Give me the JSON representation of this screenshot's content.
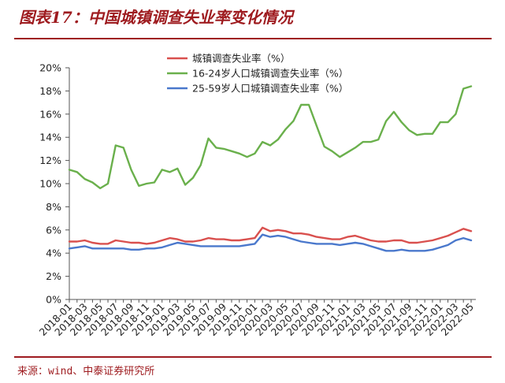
{
  "figure": {
    "title": "图表17：中国城镇调查失业率变化情况",
    "source": "来源：wind、中泰证券研究所"
  },
  "chart_data": {
    "type": "line",
    "title": "",
    "xlabel": "",
    "ylabel": "",
    "ylim": [
      0,
      20
    ],
    "yticks": [
      "0%",
      "2%",
      "4%",
      "6%",
      "8%",
      "10%",
      "12%",
      "14%",
      "16%",
      "18%",
      "20%"
    ],
    "grid": false,
    "legend_position": "top-left",
    "x": [
      "2018-01",
      "2018-02",
      "2018-03",
      "2018-04",
      "2018-05",
      "2018-06",
      "2018-07",
      "2018-08",
      "2018-09",
      "2018-10",
      "2018-11",
      "2018-12",
      "2019-01",
      "2019-02",
      "2019-03",
      "2019-04",
      "2019-05",
      "2019-06",
      "2019-07",
      "2019-08",
      "2019-09",
      "2019-10",
      "2019-11",
      "2019-12",
      "2020-01",
      "2020-02",
      "2020-03",
      "2020-04",
      "2020-05",
      "2020-06",
      "2020-07",
      "2020-08",
      "2020-09",
      "2020-10",
      "2020-11",
      "2020-12",
      "2021-01",
      "2021-02",
      "2021-03",
      "2021-04",
      "2021-05",
      "2021-06",
      "2021-07",
      "2021-08",
      "2021-09",
      "2021-10",
      "2021-11",
      "2021-12",
      "2022-01",
      "2022-02",
      "2022-03",
      "2022-04",
      "2022-05"
    ],
    "xtick_labels": [
      "2018-01",
      "2018-03",
      "2018-05",
      "2018-07",
      "2018-09",
      "2018-11",
      "2019-01",
      "2019-03",
      "2019-05",
      "2019-07",
      "2019-09",
      "2019-11",
      "2020-01",
      "2020-03",
      "2020-05",
      "2020-07",
      "2020-09",
      "2020-11",
      "2021-01",
      "2021-03",
      "2021-05",
      "2021-07",
      "2021-09",
      "2021-11",
      "2022-01",
      "2022-03",
      "2022-05"
    ],
    "series": [
      {
        "name": "城镇调查失业率（%）",
        "color": "#d9504e",
        "values": [
          5.0,
          5.0,
          5.1,
          4.9,
          4.8,
          4.8,
          5.1,
          5.0,
          4.9,
          4.9,
          4.8,
          4.9,
          5.1,
          5.3,
          5.2,
          5.0,
          5.0,
          5.1,
          5.3,
          5.2,
          5.2,
          5.1,
          5.1,
          5.2,
          5.3,
          6.2,
          5.9,
          6.0,
          5.9,
          5.7,
          5.7,
          5.6,
          5.4,
          5.3,
          5.2,
          5.2,
          5.4,
          5.5,
          5.3,
          5.1,
          5.0,
          5.0,
          5.1,
          5.1,
          4.9,
          4.9,
          5.0,
          5.1,
          5.3,
          5.5,
          5.8,
          6.1,
          5.9
        ]
      },
      {
        "name": "16-24岁人口城镇调查失业率（%）",
        "color": "#6ab04c",
        "values": [
          11.2,
          11.0,
          10.4,
          10.1,
          9.6,
          10.0,
          13.3,
          13.1,
          11.2,
          9.8,
          10.0,
          10.1,
          11.2,
          11.0,
          11.3,
          9.9,
          10.5,
          11.6,
          13.9,
          13.1,
          13.0,
          12.8,
          12.6,
          12.3,
          12.6,
          13.6,
          13.3,
          13.8,
          14.7,
          15.4,
          16.8,
          16.8,
          15.0,
          13.2,
          12.8,
          12.3,
          12.7,
          13.1,
          13.6,
          13.6,
          13.8,
          15.4,
          16.2,
          15.3,
          14.6,
          14.2,
          14.3,
          14.3,
          15.3,
          15.3,
          16.0,
          18.2,
          18.4
        ]
      },
      {
        "name": "25-59岁人口城镇调查失业率（%）",
        "color": "#4a78cc",
        "values": [
          4.4,
          4.5,
          4.6,
          4.4,
          4.4,
          4.4,
          4.4,
          4.4,
          4.3,
          4.3,
          4.4,
          4.4,
          4.5,
          4.7,
          4.9,
          4.8,
          4.7,
          4.6,
          4.6,
          4.6,
          4.6,
          4.6,
          4.6,
          4.7,
          4.8,
          5.6,
          5.4,
          5.5,
          5.4,
          5.2,
          5.0,
          4.9,
          4.8,
          4.8,
          4.8,
          4.7,
          4.8,
          4.9,
          4.8,
          4.6,
          4.4,
          4.2,
          4.2,
          4.3,
          4.2,
          4.2,
          4.2,
          4.3,
          4.5,
          4.7,
          5.1,
          5.3,
          5.1
        ]
      }
    ]
  }
}
